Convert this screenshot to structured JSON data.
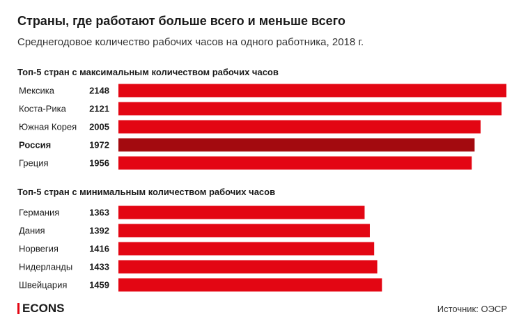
{
  "header": {
    "title": "Страны, где работают больше всего и меньше всего",
    "subtitle": "Среднегодовое количество рабочих часов на одного работника, 2018 г."
  },
  "footer": {
    "brand": "ECONS",
    "source": "Источник: ОЭСР"
  },
  "colors": {
    "bar": "#e30613",
    "highlight_bar": "#a30a0f",
    "brand_accent": "#e30613"
  },
  "chart_data": [
    {
      "type": "bar",
      "orientation": "horizontal",
      "title": "Топ-5 стран с максимальным количеством рабочих часов",
      "categories": [
        "Мексика",
        "Коста-Рика",
        "Южная Корея",
        "Россия",
        "Греция"
      ],
      "values": [
        2148,
        2121,
        2005,
        1972,
        1956
      ],
      "highlight": "Россия",
      "xlim": [
        0,
        2148
      ]
    },
    {
      "type": "bar",
      "orientation": "horizontal",
      "title": "Топ-5 стран с минимальным количеством рабочих часов",
      "categories": [
        "Германия",
        "Дания",
        "Норвегия",
        "Нидерланды",
        "Швейцария"
      ],
      "values": [
        1363,
        1392,
        1416,
        1433,
        1459
      ],
      "highlight": null,
      "xlim": [
        0,
        2148
      ]
    }
  ]
}
